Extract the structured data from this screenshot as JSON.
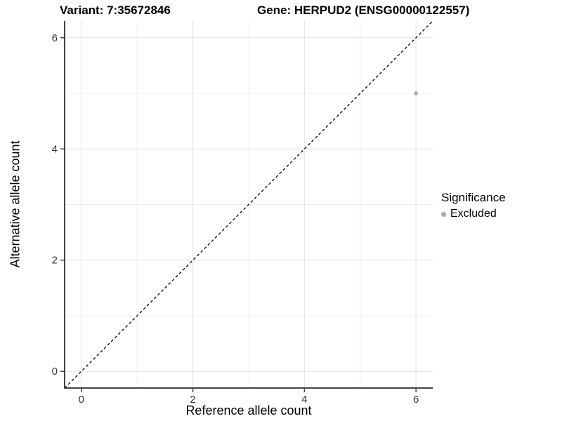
{
  "figure": {
    "background": "#ffffff"
  },
  "chart_data": {
    "type": "scatter",
    "title_left": "Variant: 7:35672846",
    "title_right": "Gene: HERPUD2 (ENSG00000122557)",
    "xlabel": "Reference allele count",
    "ylabel": "Alternative allele count",
    "xlim": [
      -0.3,
      6.3
    ],
    "ylim": [
      -0.3,
      6.3
    ],
    "x_major_ticks": [
      0,
      2,
      4,
      6
    ],
    "y_major_ticks": [
      0,
      2,
      4,
      6
    ],
    "x_minor_gridlines": [
      1,
      3,
      5
    ],
    "y_minor_gridlines": [
      1,
      3,
      5
    ],
    "grid": "on",
    "series": [
      {
        "name": "Excluded",
        "color": "#a8a8a8",
        "points": [
          {
            "x": 6,
            "y": 5
          }
        ]
      }
    ],
    "reference_line": {
      "kind": "identity y=x",
      "from": [
        -0.3,
        -0.3
      ],
      "to": [
        6.3,
        6.3
      ],
      "style": "dashed",
      "color": "#000000"
    },
    "legend": {
      "title": "Significance",
      "position": "right",
      "items": [
        {
          "label": "Excluded",
          "color": "#a8a8a8"
        }
      ]
    },
    "colors": {
      "axis_line": "#444444",
      "tick_label": "#333333",
      "major_grid": "#e6e6e6",
      "minor_grid": "#f0f0f0"
    }
  }
}
